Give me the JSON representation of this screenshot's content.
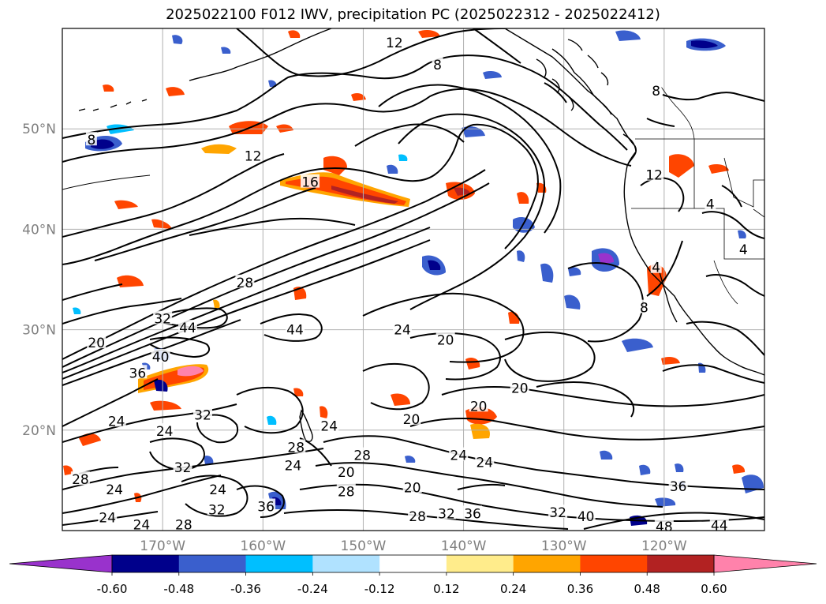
{
  "title": "2025022100 F012 IWV, precipitation PC (2025022312 - 2025022412)",
  "map": {
    "lon_range": [
      -180,
      -110
    ],
    "lat_range": [
      10,
      60
    ],
    "lat_ticks": [
      {
        "value": 50,
        "label": "50°N"
      },
      {
        "value": 40,
        "label": "40°N"
      },
      {
        "value": 30,
        "label": "30°N"
      },
      {
        "value": 20,
        "label": "20°N"
      }
    ],
    "lon_ticks": [
      {
        "value": -170,
        "label": "170°W"
      },
      {
        "value": -160,
        "label": "160°W"
      },
      {
        "value": -150,
        "label": "150°W"
      },
      {
        "value": -140,
        "label": "140°W"
      },
      {
        "value": -130,
        "label": "130°W"
      },
      {
        "value": -120,
        "label": "120°W"
      }
    ],
    "grid": true
  },
  "contour_labels": [
    {
      "text": "12",
      "lon": -146.9,
      "lat": 58.6
    },
    {
      "text": "8",
      "lon": -142.6,
      "lat": 56.4
    },
    {
      "text": "8",
      "lon": -120.8,
      "lat": 53.8
    },
    {
      "text": "8",
      "lon": -177.1,
      "lat": 48.9
    },
    {
      "text": "12",
      "lon": -161.0,
      "lat": 47.3
    },
    {
      "text": "16",
      "lon": -155.3,
      "lat": 44.7
    },
    {
      "text": "12",
      "lon": -121.0,
      "lat": 45.4
    },
    {
      "text": "4",
      "lon": -115.4,
      "lat": 42.5
    },
    {
      "text": "4",
      "lon": -112.1,
      "lat": 38.0
    },
    {
      "text": "4",
      "lon": -120.8,
      "lat": 36.2
    },
    {
      "text": "8",
      "lon": -122.0,
      "lat": 32.2
    },
    {
      "text": "28",
      "lon": -161.8,
      "lat": 34.7
    },
    {
      "text": "44",
      "lon": -156.8,
      "lat": 30.0
    },
    {
      "text": "32",
      "lon": -170.0,
      "lat": 31.1
    },
    {
      "text": "44",
      "lon": -167.5,
      "lat": 30.2
    },
    {
      "text": "20",
      "lon": -176.6,
      "lat": 28.7
    },
    {
      "text": "40",
      "lon": -170.2,
      "lat": 27.3
    },
    {
      "text": "36",
      "lon": -172.5,
      "lat": 25.7
    },
    {
      "text": "24",
      "lon": -146.1,
      "lat": 30.0
    },
    {
      "text": "20",
      "lon": -141.8,
      "lat": 29.0
    },
    {
      "text": "20",
      "lon": -134.4,
      "lat": 24.2
    },
    {
      "text": "20",
      "lon": -138.5,
      "lat": 22.4
    },
    {
      "text": "20",
      "lon": -145.2,
      "lat": 21.1
    },
    {
      "text": "24",
      "lon": -174.6,
      "lat": 20.9
    },
    {
      "text": "24",
      "lon": -169.8,
      "lat": 19.9
    },
    {
      "text": "32",
      "lon": -166.0,
      "lat": 21.5
    },
    {
      "text": "24",
      "lon": -153.4,
      "lat": 20.4
    },
    {
      "text": "28",
      "lon": -156.7,
      "lat": 18.3
    },
    {
      "text": "24",
      "lon": -157.0,
      "lat": 16.5
    },
    {
      "text": "28",
      "lon": -150.1,
      "lat": 17.5
    },
    {
      "text": "20",
      "lon": -151.7,
      "lat": 15.8
    },
    {
      "text": "28",
      "lon": -151.7,
      "lat": 13.9
    },
    {
      "text": "20",
      "lon": -145.1,
      "lat": 14.3
    },
    {
      "text": "24",
      "lon": -140.5,
      "lat": 17.5
    },
    {
      "text": "24",
      "lon": -137.9,
      "lat": 16.8
    },
    {
      "text": "28",
      "lon": -178.2,
      "lat": 15.1
    },
    {
      "text": "24",
      "lon": -174.8,
      "lat": 14.1
    },
    {
      "text": "32",
      "lon": -168.0,
      "lat": 16.3
    },
    {
      "text": "24",
      "lon": -164.5,
      "lat": 14.1
    },
    {
      "text": "32",
      "lon": -164.6,
      "lat": 12.1
    },
    {
      "text": "36",
      "lon": -159.7,
      "lat": 12.4
    },
    {
      "text": "24",
      "lon": -175.5,
      "lat": 11.3
    },
    {
      "text": "24",
      "lon": -172.1,
      "lat": 10.6
    },
    {
      "text": "28",
      "lon": -167.9,
      "lat": 10.6
    },
    {
      "text": "28",
      "lon": -144.6,
      "lat": 11.4
    },
    {
      "text": "32",
      "lon": -141.7,
      "lat": 11.7
    },
    {
      "text": "36",
      "lon": -139.1,
      "lat": 11.7
    },
    {
      "text": "32",
      "lon": -130.6,
      "lat": 11.8
    },
    {
      "text": "40",
      "lon": -127.8,
      "lat": 11.4
    },
    {
      "text": "36",
      "lon": -118.6,
      "lat": 14.4
    },
    {
      "text": "48",
      "lon": -120.0,
      "lat": 10.4
    },
    {
      "text": "44",
      "lon": -114.5,
      "lat": 10.5
    }
  ],
  "colorbar": {
    "ticks": [
      "-0.60",
      "-0.48",
      "-0.36",
      "-0.24",
      "-0.12",
      "0.12",
      "0.24",
      "0.36",
      "0.48",
      "0.60"
    ],
    "colors": [
      "#9932cc",
      "#00008b",
      "#3a5fcd",
      "#00bfff",
      "#b0e2ff",
      "#ffffff",
      "#ffec8b",
      "#ffa500",
      "#ff4500",
      "#b22222",
      "#ff82ab"
    ]
  }
}
